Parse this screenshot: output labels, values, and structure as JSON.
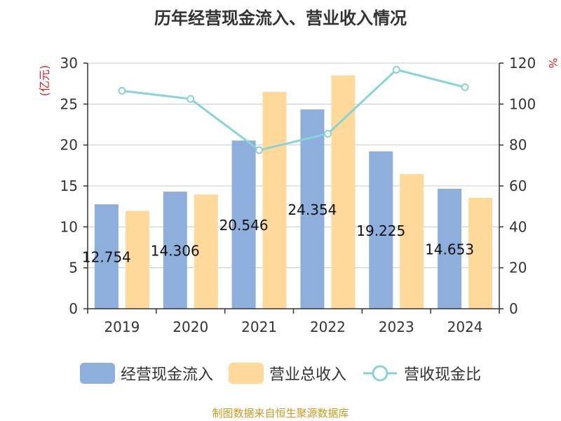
{
  "title": "历年经营现金流入、营业收入情况",
  "source": "制图数据来自恒生聚源数据库",
  "colors": {
    "inflow": "#8eaedb",
    "revenue": "#fed99a",
    "ratio": "#88d3d6",
    "unit": "#e02020",
    "text": "#333333"
  },
  "chart_data": {
    "type": "bar",
    "categories": [
      "2019",
      "2020",
      "2021",
      "2022",
      "2023",
      "2024"
    ],
    "y_left_unit": "(亿元)",
    "y_right_unit": "%",
    "y_left_lim": [
      0,
      30
    ],
    "y_left_ticks": [
      0,
      5,
      10,
      15,
      20,
      25,
      30
    ],
    "y_right_lim": [
      0,
      120
    ],
    "y_right_ticks": [
      0,
      20,
      40,
      60,
      80,
      100,
      120
    ],
    "grid": true,
    "legend_position": "bottom",
    "series": [
      {
        "name": "经营现金流入",
        "type": "bar",
        "axis": "left",
        "values": [
          12.754,
          14.306,
          20.546,
          24.354,
          19.225,
          14.653
        ],
        "labels": [
          "12.754",
          "14.306",
          "20.546",
          "24.354",
          "19.225",
          "14.653"
        ]
      },
      {
        "name": "营业总收入",
        "type": "bar",
        "axis": "left",
        "values": [
          11.95,
          13.95,
          26.5,
          28.5,
          16.45,
          13.55
        ]
      },
      {
        "name": "营收现金比",
        "type": "line",
        "axis": "right",
        "values": [
          106.5,
          102.5,
          77.5,
          85.5,
          116.8,
          108.2
        ]
      }
    ]
  }
}
